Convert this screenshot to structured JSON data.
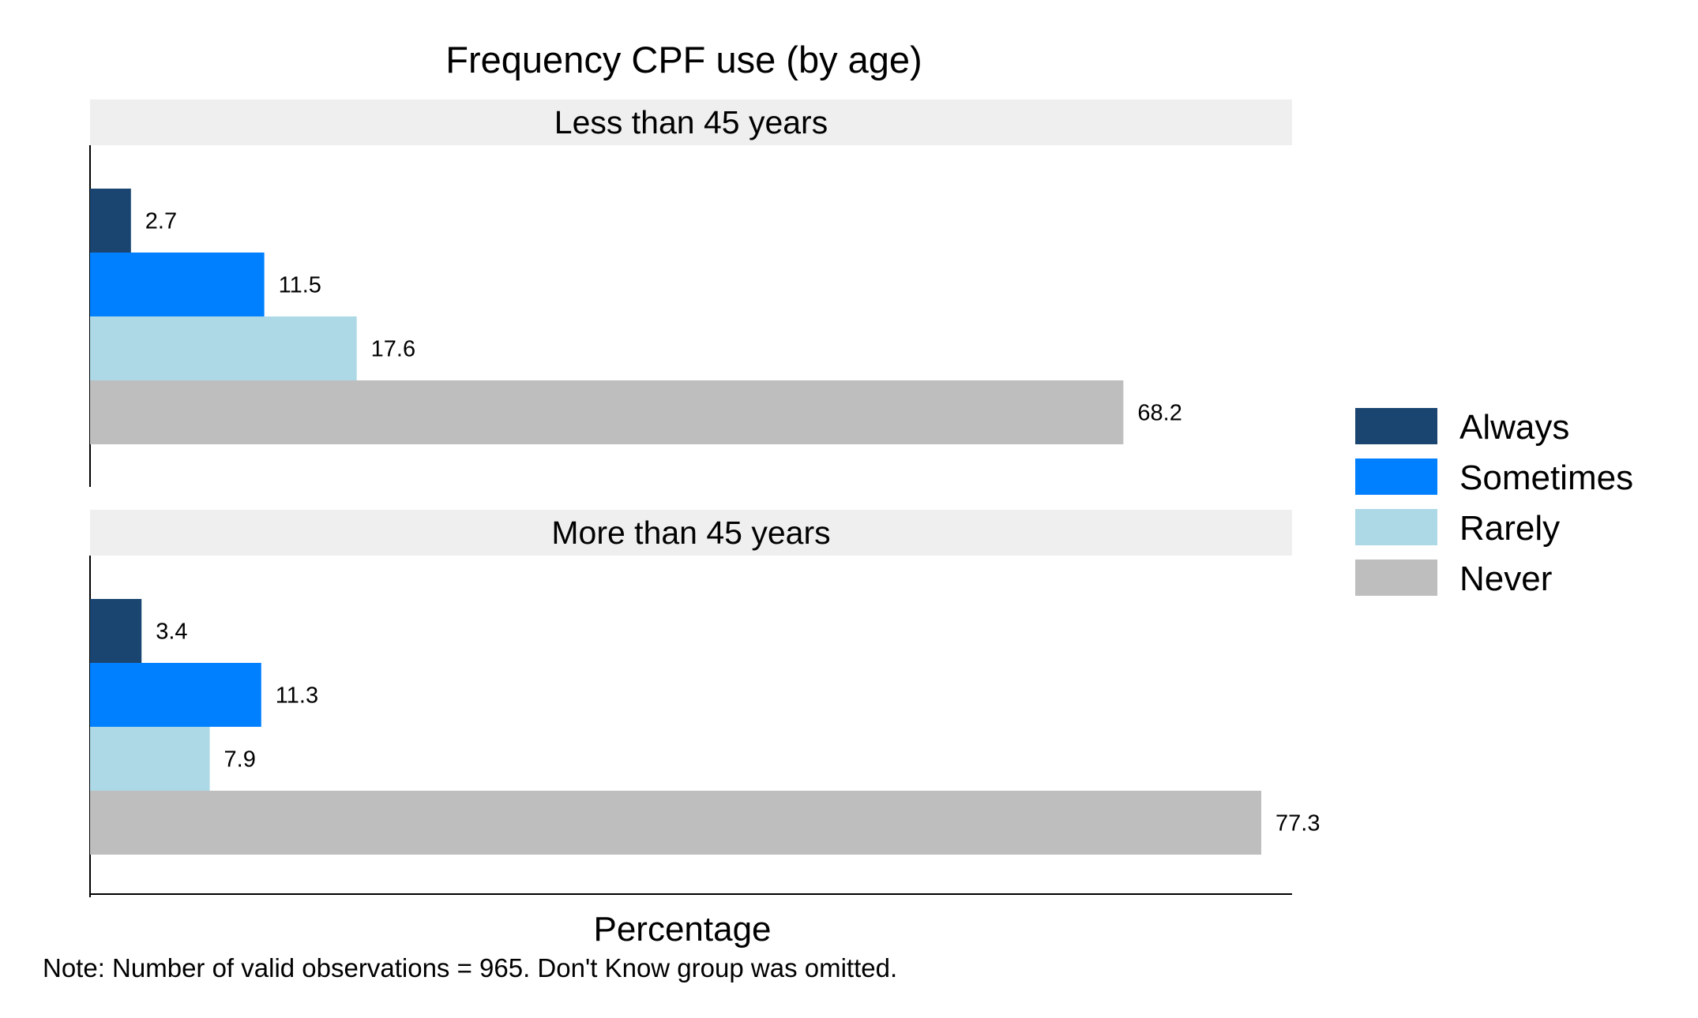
{
  "chart_data": {
    "type": "bar",
    "orientation": "horizontal",
    "title": "Frequency CPF use (by age)",
    "xlabel": "Percentage",
    "ylabel": "",
    "note": "Note: Number of valid observations = 965. Don't Know group was omitted.",
    "xlim": [
      0,
      80
    ],
    "grid": false,
    "legend_position": "right",
    "categories": [
      "Always",
      "Sometimes",
      "Rarely",
      "Never"
    ],
    "colors": [
      "#1a4570",
      "#0080ff",
      "#add8e6",
      "#bebebe"
    ],
    "panels": [
      {
        "label": "Less than 45 years",
        "values": [
          2.7,
          11.5,
          17.6,
          68.2
        ],
        "value_labels": [
          "2.7",
          "11.5",
          "17.6",
          "68.2"
        ]
      },
      {
        "label": "More than 45 years",
        "values": [
          3.4,
          11.3,
          7.9,
          77.3
        ],
        "value_labels": [
          "3.4",
          "11.3",
          "7.9",
          "77.3"
        ]
      }
    ]
  }
}
